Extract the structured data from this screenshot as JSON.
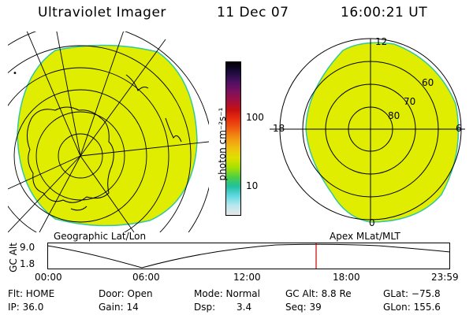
{
  "header": {
    "instrument": "Ultraviolet Imager",
    "date": "11 Dec 07",
    "time": "16:00:21 UT"
  },
  "left_panel": {
    "caption": "Geographic Lat/Lon"
  },
  "right_panel": {
    "caption": "Apex MLat/MLT",
    "lat_labels": [
      "60",
      "70",
      "80"
    ],
    "mlt_labels": [
      "12",
      "18",
      "6",
      "0"
    ]
  },
  "colorbar": {
    "unit_label": "photon cm⁻²s⁻¹",
    "ticks": [
      "100",
      "10"
    ],
    "colors": [
      "#000000",
      "#1a0a3a",
      "#4a1060",
      "#7a1060",
      "#a01040",
      "#c81010",
      "#e83010",
      "#f06010",
      "#f09810",
      "#f0c010",
      "#e0e000",
      "#a8e000",
      "#50d040",
      "#20c0a0",
      "#60d8e0",
      "#b8e8ee",
      "#e8e8e8"
    ]
  },
  "timeline": {
    "ylabel": "GC Alt",
    "ymax_label": "9.0",
    "ymin_label": "1.8",
    "xticks": [
      "00:00",
      "06:00",
      "12:00",
      "18:00",
      "23:59"
    ],
    "current_time": "16:00"
  },
  "status": {
    "flt": "Flt: HOME",
    "ip": "IP: 36.0",
    "door": "Door: Open",
    "gain": "Gain: 14",
    "mode": "Mode: Normal",
    "dsp": "Dsp:",
    "dsp_val": "3.4",
    "gc_alt": "GC Alt: 8.8 Re",
    "seq": "Seq: 39",
    "glat": "GLat: −75.8",
    "glon": "GLon: 155.6"
  },
  "colors": {
    "aurora_fill": "#e0ec00",
    "aurora_edge": "#30c8a0",
    "marker": "#cc0000"
  }
}
